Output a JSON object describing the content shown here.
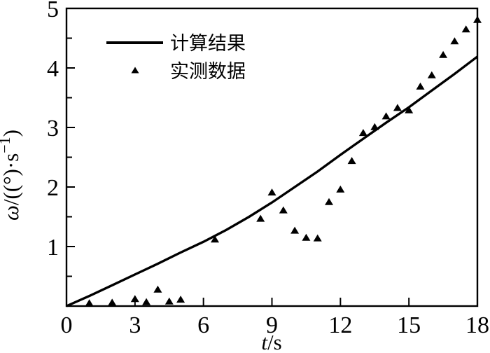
{
  "figure": {
    "background": "#ffffff",
    "ink_color": "#000000"
  },
  "chart_data": {
    "type": "line+scatter",
    "title": "",
    "xlabel": "t/s",
    "xlabel_parts": {
      "symbol": "t",
      "unit": "/s"
    },
    "ylabel": "ω/((°)·s⁻¹)",
    "ylabel_parts": {
      "symbol": "ω",
      "unit_a": "/((°)·s",
      "sup": "−1",
      "unit_b": ")"
    },
    "xlim": [
      0,
      18
    ],
    "ylim": [
      0,
      5
    ],
    "x_ticks": [
      0,
      3,
      6,
      9,
      12,
      15,
      18
    ],
    "y_ticks": [
      1,
      2,
      3,
      4,
      5
    ],
    "y_minor_ticks": [
      0.5,
      1.5,
      2.5,
      3.5,
      4.5
    ],
    "grid": false,
    "legend_position": "top-left-inside",
    "series": [
      {
        "name": "计算结果",
        "type": "line",
        "color": "#000000",
        "x": [
          0,
          1,
          2,
          3,
          4,
          5,
          6,
          7,
          8,
          9,
          10,
          11,
          12,
          13,
          14,
          15,
          16,
          17,
          18
        ],
        "y": [
          0,
          0.17,
          0.35,
          0.53,
          0.71,
          0.9,
          1.08,
          1.28,
          1.5,
          1.74,
          2.0,
          2.26,
          2.54,
          2.81,
          3.08,
          3.34,
          3.62,
          3.9,
          4.19
        ]
      },
      {
        "name": "实测数据",
        "type": "scatter",
        "marker": "triangle",
        "color": "#000000",
        "x": [
          1,
          2,
          3,
          3.5,
          4,
          4.5,
          5,
          6.5,
          8.5,
          9,
          9.5,
          10,
          10.5,
          11,
          11.5,
          12,
          12.5,
          13,
          13.5,
          14,
          14.5,
          15,
          15.5,
          16,
          16.5,
          17,
          17.5,
          18
        ],
        "y": [
          0.05,
          0.06,
          0.12,
          0.07,
          0.28,
          0.08,
          0.11,
          1.12,
          1.47,
          1.91,
          1.61,
          1.27,
          1.15,
          1.14,
          1.75,
          1.96,
          2.44,
          2.91,
          3.01,
          3.19,
          3.33,
          3.29,
          3.69,
          3.88,
          4.22,
          4.45,
          4.65,
          4.81
        ]
      }
    ]
  }
}
